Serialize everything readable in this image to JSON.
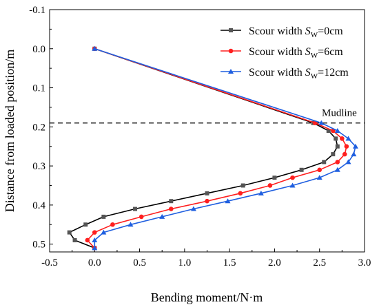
{
  "chart_data": {
    "type": "line",
    "xlabel": "Bending moment/N·m",
    "ylabel": "Distance from loaded position/m",
    "xlim": [
      -0.5,
      3.0
    ],
    "ylim": [
      -0.1,
      0.52
    ],
    "y_inverted": true,
    "x_ticks": [
      "-0.5",
      "0.0",
      "0.5",
      "1.0",
      "1.5",
      "2.0",
      "2.5",
      "3.0"
    ],
    "x_tick_values": [
      -0.5,
      0.0,
      0.5,
      1.0,
      1.5,
      2.0,
      2.5,
      3.0
    ],
    "y_ticks": [
      "-0.1",
      "0.0",
      "0.1",
      "0.2",
      "0.3",
      "0.4",
      "0.5"
    ],
    "y_tick_values": [
      -0.1,
      0.0,
      0.1,
      0.2,
      0.3,
      0.4,
      0.5
    ],
    "grid": false,
    "legend_position": "top-right",
    "annotation": {
      "text": "Mudline",
      "y": 0.19
    },
    "series": [
      {
        "name": "Scour width S_W=0cm",
        "legend_prefix": "Scour width ",
        "legend_var": "S",
        "legend_sub": "W",
        "legend_suffix": "=0cm",
        "color": "#000000",
        "marker": "square",
        "marker_color": "#555555",
        "points": [
          [
            0.0,
            0.0
          ],
          [
            2.43,
            0.19
          ],
          [
            2.6,
            0.21
          ],
          [
            2.68,
            0.23
          ],
          [
            2.7,
            0.25
          ],
          [
            2.65,
            0.27
          ],
          [
            2.55,
            0.29
          ],
          [
            2.3,
            0.31
          ],
          [
            2.0,
            0.33
          ],
          [
            1.65,
            0.35
          ],
          [
            1.25,
            0.37
          ],
          [
            0.85,
            0.39
          ],
          [
            0.45,
            0.41
          ],
          [
            0.1,
            0.43
          ],
          [
            -0.1,
            0.45
          ],
          [
            -0.28,
            0.47
          ],
          [
            -0.22,
            0.49
          ],
          [
            0.0,
            0.51
          ]
        ]
      },
      {
        "name": "Scour width S_W=6cm",
        "legend_prefix": "Scour width ",
        "legend_var": "S",
        "legend_sub": "W",
        "legend_suffix": "=6cm",
        "color": "#ff1f1f",
        "marker": "circle",
        "marker_color": "#ff1f1f",
        "points": [
          [
            0.0,
            0.0
          ],
          [
            2.45,
            0.19
          ],
          [
            2.65,
            0.21
          ],
          [
            2.75,
            0.23
          ],
          [
            2.8,
            0.25
          ],
          [
            2.78,
            0.27
          ],
          [
            2.7,
            0.29
          ],
          [
            2.5,
            0.31
          ],
          [
            2.2,
            0.33
          ],
          [
            1.95,
            0.35
          ],
          [
            1.62,
            0.37
          ],
          [
            1.25,
            0.39
          ],
          [
            0.85,
            0.41
          ],
          [
            0.52,
            0.43
          ],
          [
            0.2,
            0.45
          ],
          [
            0.0,
            0.47
          ],
          [
            -0.08,
            0.49
          ],
          [
            0.0,
            0.51
          ]
        ]
      },
      {
        "name": "Scour width S_W=12cm",
        "legend_prefix": "Scour width ",
        "legend_var": "S",
        "legend_sub": "W",
        "legend_suffix": "=12cm",
        "color": "#1f5fe0",
        "marker": "triangle",
        "marker_color": "#1f5fe0",
        "points": [
          [
            0.0,
            0.0
          ],
          [
            2.52,
            0.19
          ],
          [
            2.7,
            0.21
          ],
          [
            2.82,
            0.23
          ],
          [
            2.9,
            0.25
          ],
          [
            2.88,
            0.27
          ],
          [
            2.82,
            0.29
          ],
          [
            2.7,
            0.31
          ],
          [
            2.5,
            0.33
          ],
          [
            2.2,
            0.35
          ],
          [
            1.85,
            0.37
          ],
          [
            1.48,
            0.39
          ],
          [
            1.1,
            0.41
          ],
          [
            0.75,
            0.43
          ],
          [
            0.4,
            0.45
          ],
          [
            0.1,
            0.47
          ],
          [
            0.0,
            0.49
          ],
          [
            0.0,
            0.51
          ]
        ]
      }
    ]
  }
}
